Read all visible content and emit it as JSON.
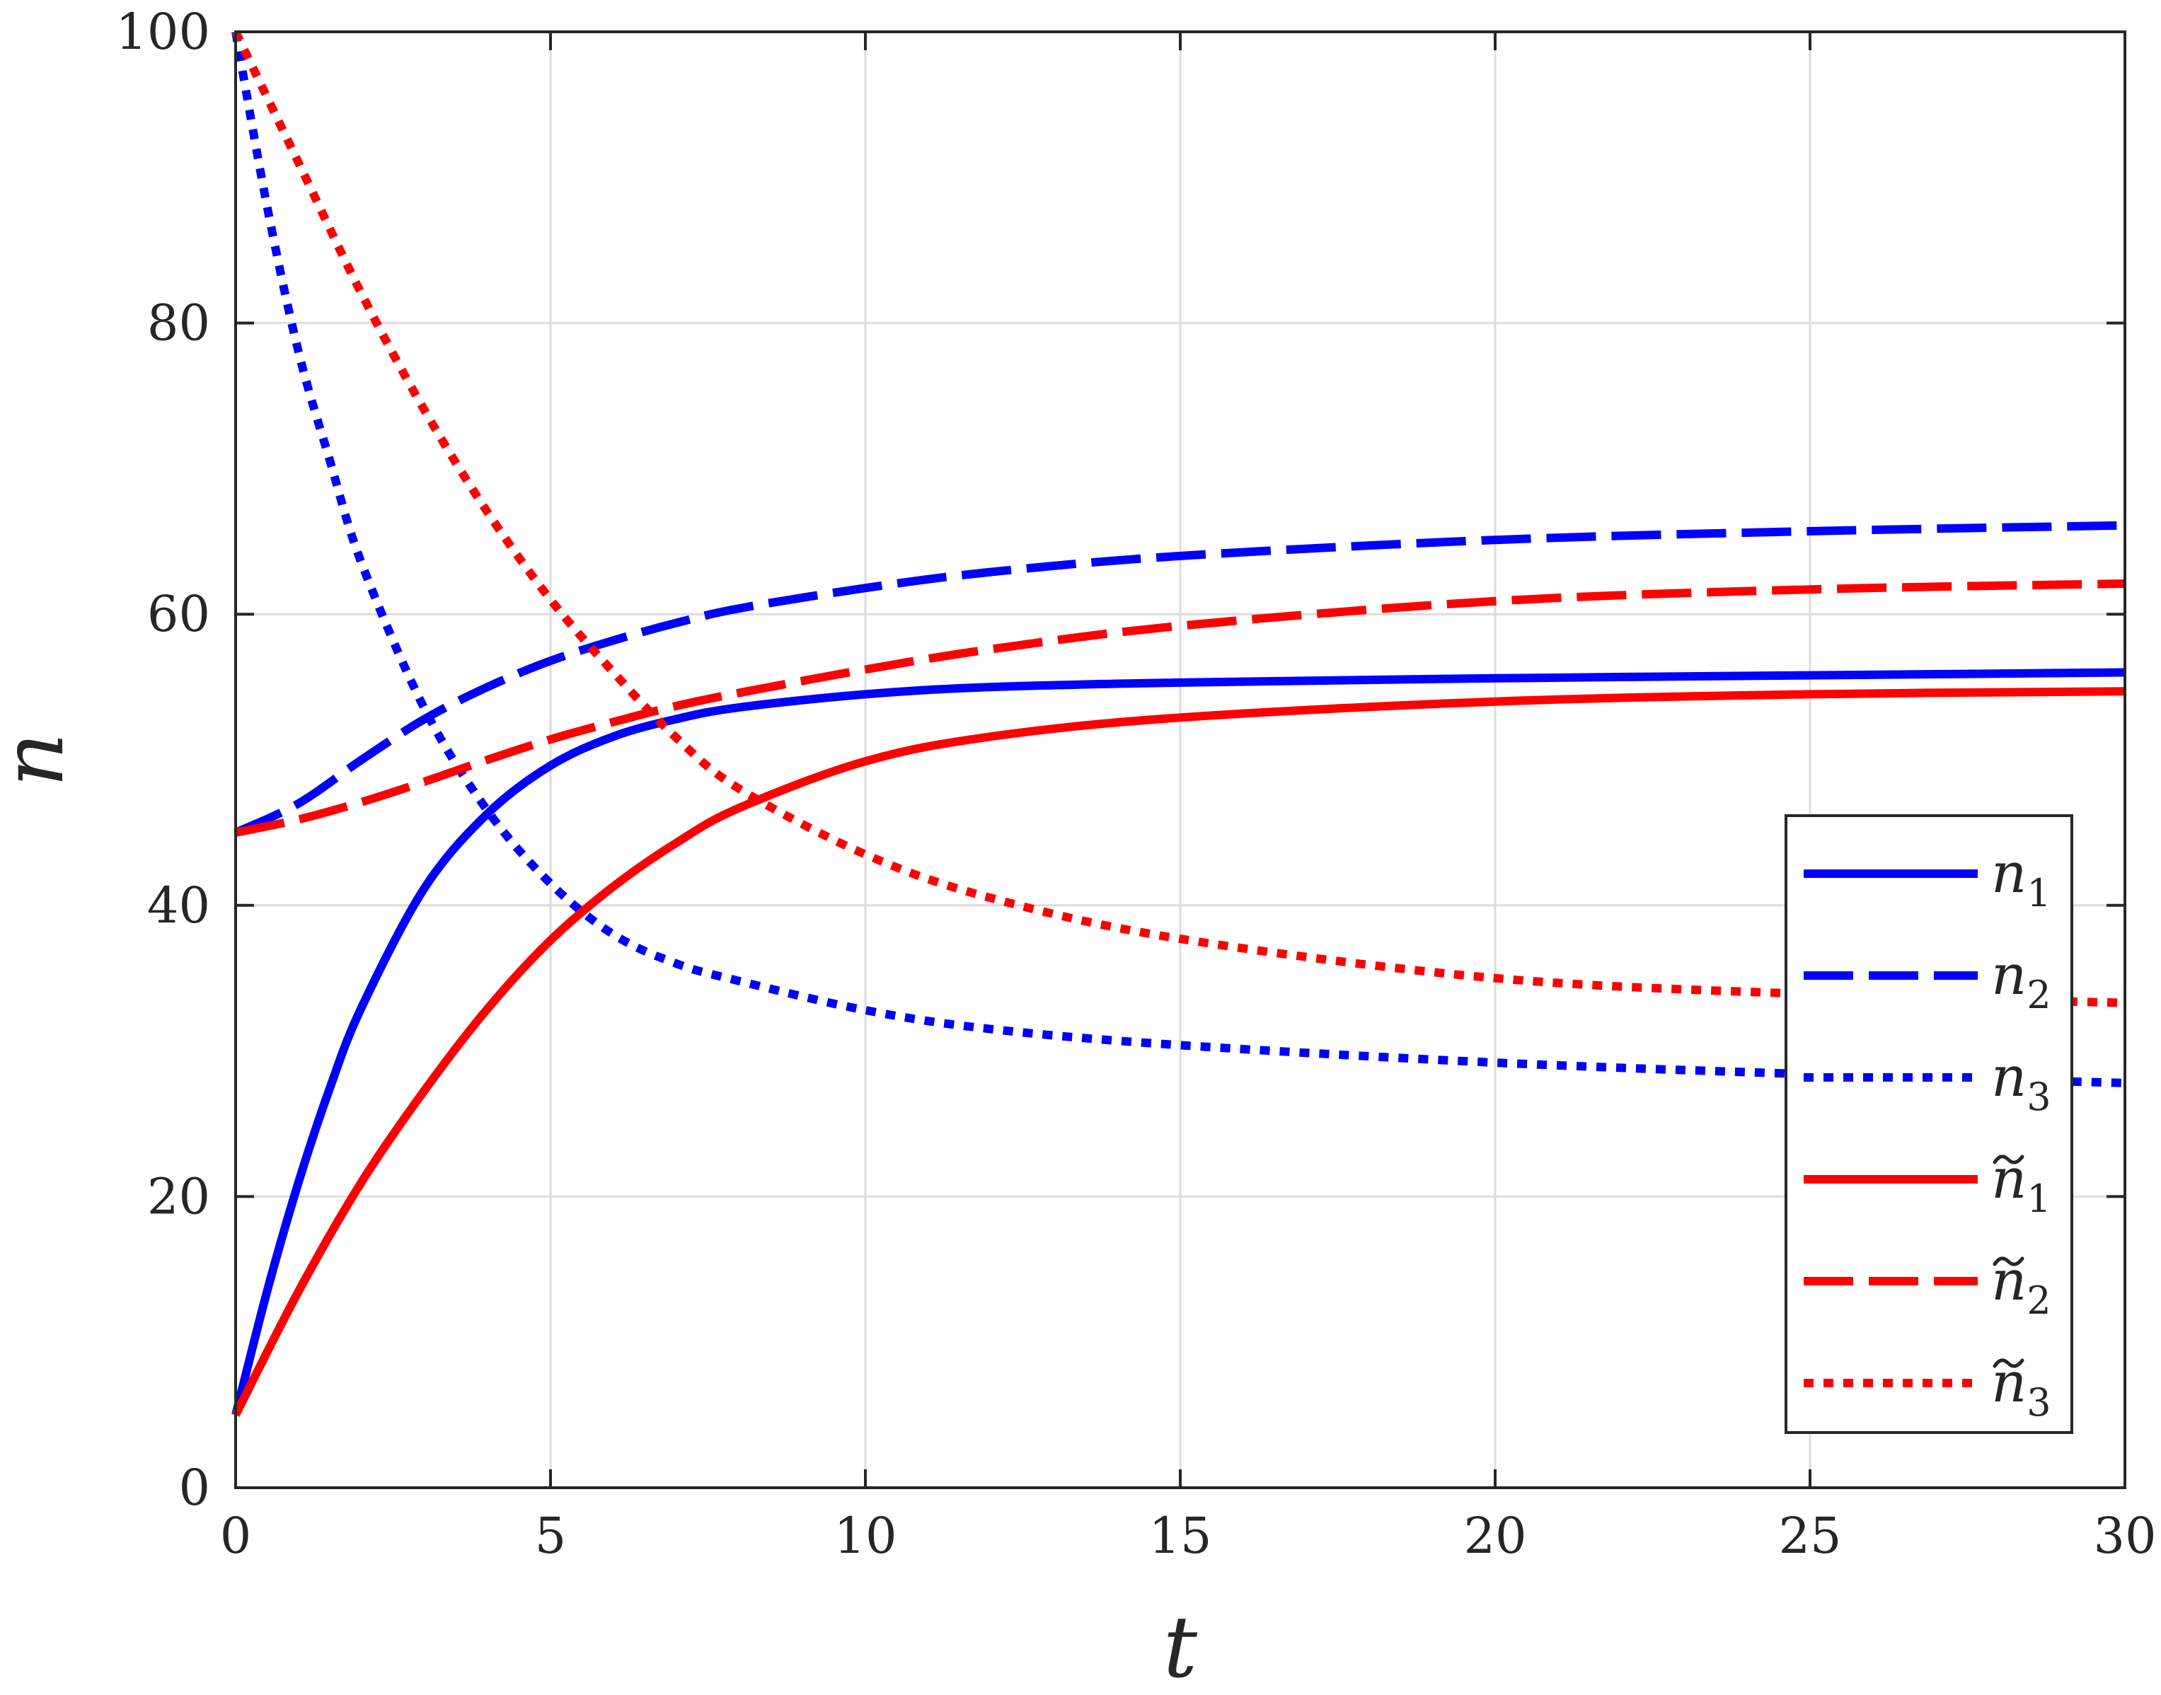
{
  "chart_data": {
    "type": "line",
    "xlabel": "t",
    "ylabel": "n",
    "xlim": [
      0,
      30
    ],
    "ylim": [
      0,
      100
    ],
    "xticks": [
      0,
      5,
      10,
      15,
      20,
      25,
      30
    ],
    "yticks": [
      0,
      20,
      40,
      60,
      80,
      100
    ],
    "grid": true,
    "legend_position": "lower-right",
    "series": [
      {
        "name": "n",
        "sub": "1",
        "tilde": false,
        "color": "#0000ff",
        "style": "solid",
        "x": [
          0,
          0.5,
          1,
          1.5,
          2,
          3,
          4,
          5,
          6,
          7,
          8,
          10,
          12,
          15,
          20,
          25,
          30
        ],
        "y": [
          5,
          13.5,
          21,
          27.5,
          33,
          41.2,
          46.3,
          49.6,
          51.6,
          52.8,
          53.6,
          54.5,
          55,
          55.3,
          55.6,
          55.8,
          56
        ]
      },
      {
        "name": "n",
        "sub": "2",
        "tilde": false,
        "color": "#0000ff",
        "style": "dashed",
        "x": [
          0,
          1,
          2,
          3,
          4,
          5,
          6,
          7,
          8,
          10,
          12,
          15,
          20,
          25,
          30
        ],
        "y": [
          45,
          47,
          50,
          52.8,
          55,
          56.8,
          58.2,
          59.4,
          60.4,
          61.8,
          62.9,
          64,
          65.1,
          65.7,
          66.1
        ]
      },
      {
        "name": "n",
        "sub": "3",
        "tilde": false,
        "color": "#0000ff",
        "style": "dotted",
        "x": [
          0,
          0.5,
          1,
          1.5,
          2,
          3,
          4,
          5,
          6,
          7,
          8,
          10,
          12,
          15,
          20,
          25,
          30
        ],
        "y": [
          100,
          88,
          78,
          70.5,
          63.5,
          53.5,
          46.5,
          41.5,
          38,
          36,
          34.8,
          32.8,
          31.5,
          30.4,
          29.2,
          28.4,
          27.8
        ]
      },
      {
        "name": "n",
        "sub": "1",
        "tilde": true,
        "color": "#ff0000",
        "style": "solid",
        "x": [
          0,
          1,
          2,
          3,
          4,
          5,
          6,
          7,
          8,
          10,
          12,
          15,
          20,
          25,
          30
        ],
        "y": [
          5,
          13.5,
          21,
          27.3,
          32.9,
          37.6,
          41.3,
          44.3,
          46.7,
          49.9,
          51.6,
          52.9,
          54,
          54.5,
          54.7
        ]
      },
      {
        "name": "n",
        "sub": "2",
        "tilde": true,
        "color": "#ff0000",
        "style": "dashed",
        "x": [
          0,
          1,
          2,
          3,
          4,
          5,
          6,
          7,
          8,
          10,
          12,
          15,
          20,
          25,
          30
        ],
        "y": [
          45,
          45.9,
          47.1,
          48.5,
          50,
          51.4,
          52.6,
          53.7,
          54.6,
          56.2,
          57.6,
          59.2,
          60.9,
          61.7,
          62.1
        ]
      },
      {
        "name": "n",
        "sub": "3",
        "tilde": true,
        "color": "#ff0000",
        "style": "dotted",
        "x": [
          0,
          1,
          2,
          3,
          4,
          5,
          6,
          7,
          8,
          10,
          12,
          15,
          20,
          25,
          30
        ],
        "y": [
          100,
          91,
          82,
          74,
          67,
          61,
          56,
          51.5,
          48,
          43.5,
          40.5,
          37.7,
          35,
          33.9,
          33.3
        ]
      }
    ]
  }
}
